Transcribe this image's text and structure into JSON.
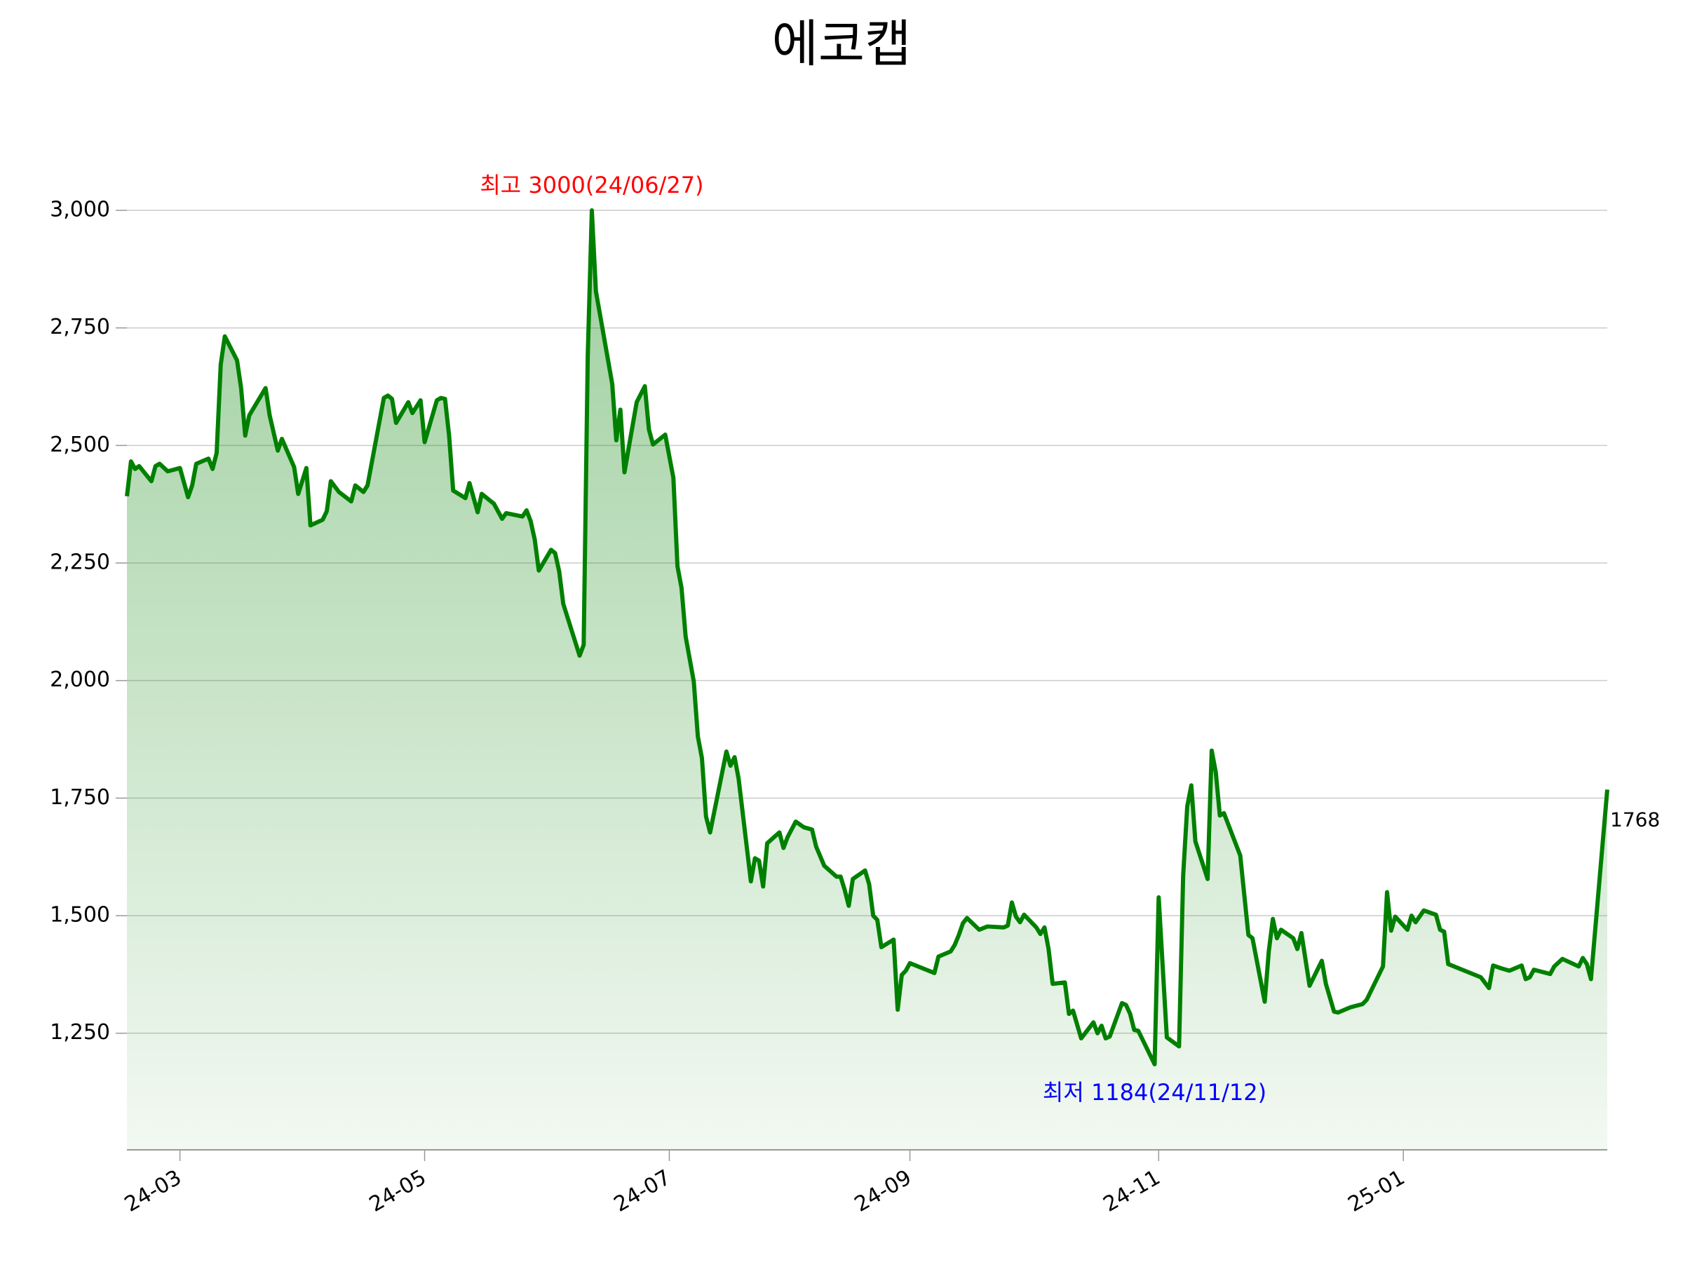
{
  "chart_data": {
    "type": "line",
    "title": "에코캡",
    "x": [
      "2024-03-05",
      "2024-03-06",
      "2024-03-07",
      "2024-03-08",
      "2024-03-11",
      "2024-03-12",
      "2024-03-13",
      "2024-03-15",
      "2024-03-18",
      "2024-03-20",
      "2024-03-21",
      "2024-03-22",
      "2024-03-25",
      "2024-03-26",
      "2024-03-27",
      "2024-03-28",
      "2024-03-29",
      "2024-04-01",
      "2024-04-02",
      "2024-04-03",
      "2024-04-04",
      "2024-04-08",
      "2024-04-09",
      "2024-04-11",
      "2024-04-12",
      "2024-04-15",
      "2024-04-16",
      "2024-04-18",
      "2024-04-19",
      "2024-04-22",
      "2024-04-23",
      "2024-04-24",
      "2024-04-26",
      "2024-04-29",
      "2024-04-30",
      "2024-05-02",
      "2024-05-03",
      "2024-05-07",
      "2024-05-08",
      "2024-05-09",
      "2024-05-10",
      "2024-05-13",
      "2024-05-14",
      "2024-05-16",
      "2024-05-17",
      "2024-05-20",
      "2024-05-21",
      "2024-05-22",
      "2024-05-23",
      "2024-05-24",
      "2024-05-27",
      "2024-05-28",
      "2024-05-30",
      "2024-05-31",
      "2024-06-03",
      "2024-06-05",
      "2024-06-06",
      "2024-06-10",
      "2024-06-11",
      "2024-06-12",
      "2024-06-13",
      "2024-06-14",
      "2024-06-17",
      "2024-06-18",
      "2024-06-19",
      "2024-06-20",
      "2024-06-24",
      "2024-06-25",
      "2024-06-26",
      "2024-06-27",
      "2024-06-28",
      "2024-07-02",
      "2024-07-03",
      "2024-07-04",
      "2024-07-05",
      "2024-07-08",
      "2024-07-10",
      "2024-07-11",
      "2024-07-12",
      "2024-07-15",
      "2024-07-17",
      "2024-07-18",
      "2024-07-19",
      "2024-07-20",
      "2024-07-22",
      "2024-07-23",
      "2024-07-24",
      "2024-07-25",
      "2024-07-26",
      "2024-07-30",
      "2024-07-31",
      "2024-08-01",
      "2024-08-02",
      "2024-08-05",
      "2024-08-06",
      "2024-08-07",
      "2024-08-08",
      "2024-08-09",
      "2024-08-12",
      "2024-08-13",
      "2024-08-14",
      "2024-08-16",
      "2024-08-18",
      "2024-08-20",
      "2024-08-21",
      "2024-08-23",
      "2024-08-26",
      "2024-08-27",
      "2024-08-28",
      "2024-08-29",
      "2024-08-30",
      "2024-09-02",
      "2024-09-03",
      "2024-09-04",
      "2024-09-05",
      "2024-09-06",
      "2024-09-09",
      "2024-09-10",
      "2024-09-11",
      "2024-09-12",
      "2024-09-13",
      "2024-09-19",
      "2024-09-20",
      "2024-09-23",
      "2024-09-24",
      "2024-09-25",
      "2024-09-26",
      "2024-09-27",
      "2024-09-30",
      "2024-10-02",
      "2024-10-06",
      "2024-10-07",
      "2024-10-08",
      "2024-10-09",
      "2024-10-10",
      "2024-10-11",
      "2024-10-14",
      "2024-10-15",
      "2024-10-16",
      "2024-10-17",
      "2024-10-18",
      "2024-10-21",
      "2024-10-22",
      "2024-10-23",
      "2024-10-25",
      "2024-10-28",
      "2024-10-29",
      "2024-10-30",
      "2024-10-31",
      "2024-11-01",
      "2024-11-04",
      "2024-11-05",
      "2024-11-06",
      "2024-11-07",
      "2024-11-08",
      "2024-11-12",
      "2024-11-13",
      "2024-11-15",
      "2024-11-18",
      "2024-11-19",
      "2024-11-20",
      "2024-11-21",
      "2024-11-22",
      "2024-11-25",
      "2024-11-26",
      "2024-11-27",
      "2024-11-28",
      "2024-11-29",
      "2024-12-03",
      "2024-12-05",
      "2024-12-06",
      "2024-12-09",
      "2024-12-10",
      "2024-12-11",
      "2024-12-12",
      "2024-12-13",
      "2024-12-16",
      "2024-12-17",
      "2024-12-18",
      "2024-12-20",
      "2024-12-23",
      "2024-12-24",
      "2024-12-26",
      "2024-12-27",
      "2024-12-30",
      "2025-01-02",
      "2025-01-03",
      "2025-01-07",
      "2025-01-08",
      "2025-01-09",
      "2025-01-10",
      "2025-01-13",
      "2025-01-14",
      "2025-01-15",
      "2025-01-17",
      "2025-01-20",
      "2025-01-21",
      "2025-01-22",
      "2025-01-23",
      "2025-01-31",
      "2025-02-02",
      "2025-02-03",
      "2025-02-05",
      "2025-02-07",
      "2025-02-10",
      "2025-02-11",
      "2025-02-12",
      "2025-02-13",
      "2025-02-17",
      "2025-02-18",
      "2025-02-20",
      "2025-02-24",
      "2025-02-25",
      "2025-02-26",
      "2025-02-27",
      "2025-03-03"
    ],
    "series": [
      {
        "color": "#008000",
        "area_color": "#008000",
        "values": [
          2392,
          2466,
          2450,
          2456,
          2424,
          2456,
          2461,
          2445,
          2452,
          2390,
          2415,
          2461,
          2472,
          2450,
          2484,
          2672,
          2732,
          2681,
          2622,
          2521,
          2564,
          2622,
          2564,
          2489,
          2514,
          2454,
          2397,
          2452,
          2330,
          2342,
          2360,
          2424,
          2401,
          2381,
          2415,
          2401,
          2415,
          2601,
          2606,
          2599,
          2548,
          2592,
          2569,
          2596,
          2507,
          2596,
          2601,
          2599,
          2521,
          2404,
          2388,
          2420,
          2358,
          2397,
          2376,
          2344,
          2356,
          2349,
          2362,
          2339,
          2300,
          2234,
          2278,
          2271,
          2232,
          2163,
          2053,
          2076,
          2690,
          3000,
          2828,
          2631,
          2511,
          2576,
          2443,
          2592,
          2626,
          2534,
          2502,
          2523,
          2431,
          2243,
          2197,
          2094,
          1998,
          1881,
          1835,
          1711,
          1677,
          1849,
          1819,
          1837,
          1791,
          1573,
          1622,
          1617,
          1562,
          1654,
          1677,
          1644,
          1667,
          1700,
          1688,
          1683,
          1647,
          1606,
          1583,
          1583,
          1555,
          1521,
          1578,
          1596,
          1567,
          1500,
          1491,
          1433,
          1449,
          1300,
          1374,
          1383,
          1399,
          1378,
          1413,
          1424,
          1438,
          1459,
          1484,
          1495,
          1470,
          1477,
          1475,
          1479,
          1528,
          1498,
          1486,
          1502,
          1475,
          1461,
          1475,
          1429,
          1355,
          1358,
          1291,
          1298,
          1239,
          1273,
          1250,
          1266,
          1239,
          1243,
          1314,
          1310,
          1291,
          1257,
          1255,
          1184,
          1539,
          1241,
          1222,
          1585,
          1732,
          1777,
          1658,
          1578,
          1851,
          1805,
          1713,
          1718,
          1628,
          1459,
          1452,
          1317,
          1424,
          1493,
          1452,
          1470,
          1452,
          1429,
          1463,
          1351,
          1404,
          1355,
          1296,
          1294,
          1305,
          1312,
          1321,
          1392,
          1550,
          1468,
          1498,
          1470,
          1500,
          1486,
          1511,
          1502,
          1470,
          1466,
          1397,
          1369,
          1346,
          1394,
          1388,
          1383,
          1394,
          1365,
          1369,
          1385,
          1376,
          1392,
          1408,
          1392,
          1410,
          1397,
          1365,
          1768
        ]
      }
    ],
    "xlim": [
      "2024-03-05",
      "2025-03-03"
    ],
    "xticks": [
      {
        "value": "2024-03-18",
        "label": "24-03"
      },
      {
        "value": "2024-05-17",
        "label": "24-05"
      },
      {
        "value": "2024-07-16",
        "label": "24-07"
      },
      {
        "value": "2024-09-13",
        "label": "24-09"
      },
      {
        "value": "2024-11-13",
        "label": "24-11"
      },
      {
        "value": "2025-01-12",
        "label": "25-01"
      }
    ],
    "ylim": [
      1002,
      3091
    ],
    "yticks": [
      {
        "value": 1250,
        "label": "1,250"
      },
      {
        "value": 1500,
        "label": "1,500"
      },
      {
        "value": 1750,
        "label": "1,750"
      },
      {
        "value": 2000,
        "label": "2,000"
      },
      {
        "value": 2250,
        "label": "2,250"
      },
      {
        "value": 2500,
        "label": "2,500"
      },
      {
        "value": 2750,
        "label": "2,750"
      },
      {
        "value": 3000,
        "label": "3,000"
      }
    ],
    "grid": true,
    "annotations": [
      {
        "text": "최고 3000(24/06/27)",
        "color": "red"
      },
      {
        "text": "최저 1184(24/11/12)",
        "color": "blue"
      }
    ]
  }
}
